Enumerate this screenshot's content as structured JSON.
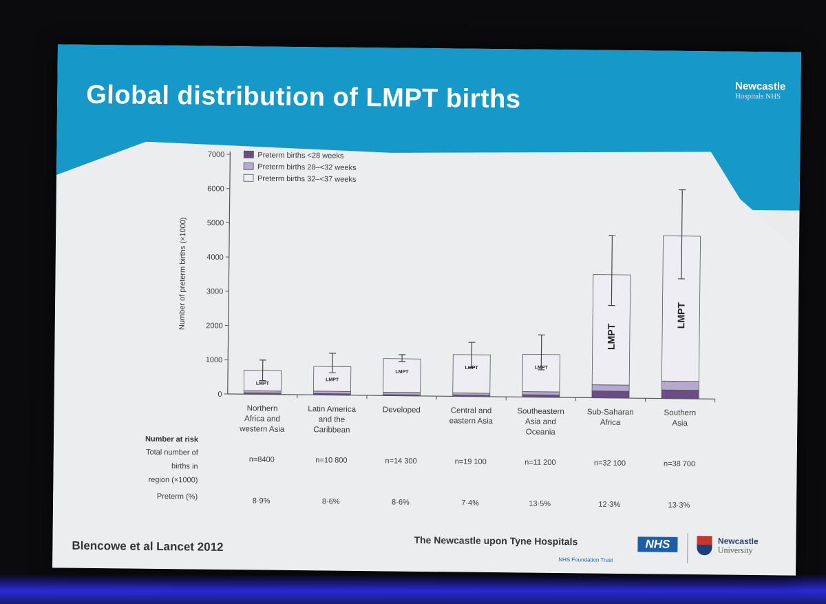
{
  "slide": {
    "title": "Global distribution of LMPT births",
    "logo_top": "Newcastle",
    "logo_top_sub": "Hospitals NHS",
    "citation": "Blencowe et al Lancet 2012",
    "footer_hospital": "The Newcastle upon Tyne Hospitals",
    "footer_nhs": "NHS",
    "footer_trust": "NHS Foundation Trust",
    "footer_university": "Newcastle",
    "footer_university_sub": "University"
  },
  "chart_data": {
    "type": "bar",
    "stacked": true,
    "title": "",
    "ylabel": "Number of preterm births (×1000)",
    "xlabel": "",
    "ylim": [
      0,
      7000
    ],
    "yticks": [
      0,
      1000,
      2000,
      3000,
      4000,
      5000,
      6000,
      7000
    ],
    "ytick_labels": [
      "0",
      "1000",
      "2000",
      "3000",
      "4000",
      "5000",
      "6000",
      "7000"
    ],
    "grid": false,
    "legend_position": "top-left",
    "categories": [
      [
        "Northern",
        "Africa and",
        "western Asia"
      ],
      [
        "Latin America",
        "and the",
        "Caribbean"
      ],
      [
        "Developed"
      ],
      [
        "Central and",
        "eastern Asia"
      ],
      [
        "Southeastern",
        "Asia and",
        "Oceania"
      ],
      [
        "Sub-Saharan",
        "Africa"
      ],
      [
        "Southern",
        "Asia"
      ]
    ],
    "series": [
      {
        "name": "Preterm births <28 weeks",
        "color": "#6b4d86",
        "values": [
          40,
          40,
          30,
          40,
          70,
          200,
          250
        ]
      },
      {
        "name": "Preterm births 28–<32 weeks",
        "color": "#b5a9cf",
        "values": [
          60,
          70,
          70,
          60,
          90,
          180,
          260
        ]
      },
      {
        "name": "Preterm births 32–<37 weeks",
        "color": "#ededf3",
        "values": [
          600,
          720,
          980,
          1120,
          1090,
          3220,
          4240
        ]
      }
    ],
    "totals": [
      700,
      830,
      1080,
      1220,
      1250,
      3600,
      4750
    ],
    "error_bars": [
      [
        400,
        1000
      ],
      [
        650,
        1220
      ],
      [
        1000,
        1200
      ],
      [
        850,
        1580
      ],
      [
        800,
        1820
      ],
      [
        2700,
        4750
      ],
      [
        3500,
        6100
      ]
    ],
    "bar_annotation": "LMPT",
    "risk_table": {
      "header": "Number at risk",
      "rows": [
        {
          "label": [
            "Total number of",
            "births in",
            "region (×1000)"
          ],
          "values": [
            "n=8400",
            "n=10 800",
            "n=14 300",
            "n=19 100",
            "n=11 200",
            "n=32 100",
            "n=38 700"
          ]
        },
        {
          "label": [
            "Preterm (%)"
          ],
          "values": [
            "8·9%",
            "8·6%",
            "8·6%",
            "7·4%",
            "13·5%",
            "12·3%",
            "13·3%"
          ]
        }
      ]
    }
  }
}
